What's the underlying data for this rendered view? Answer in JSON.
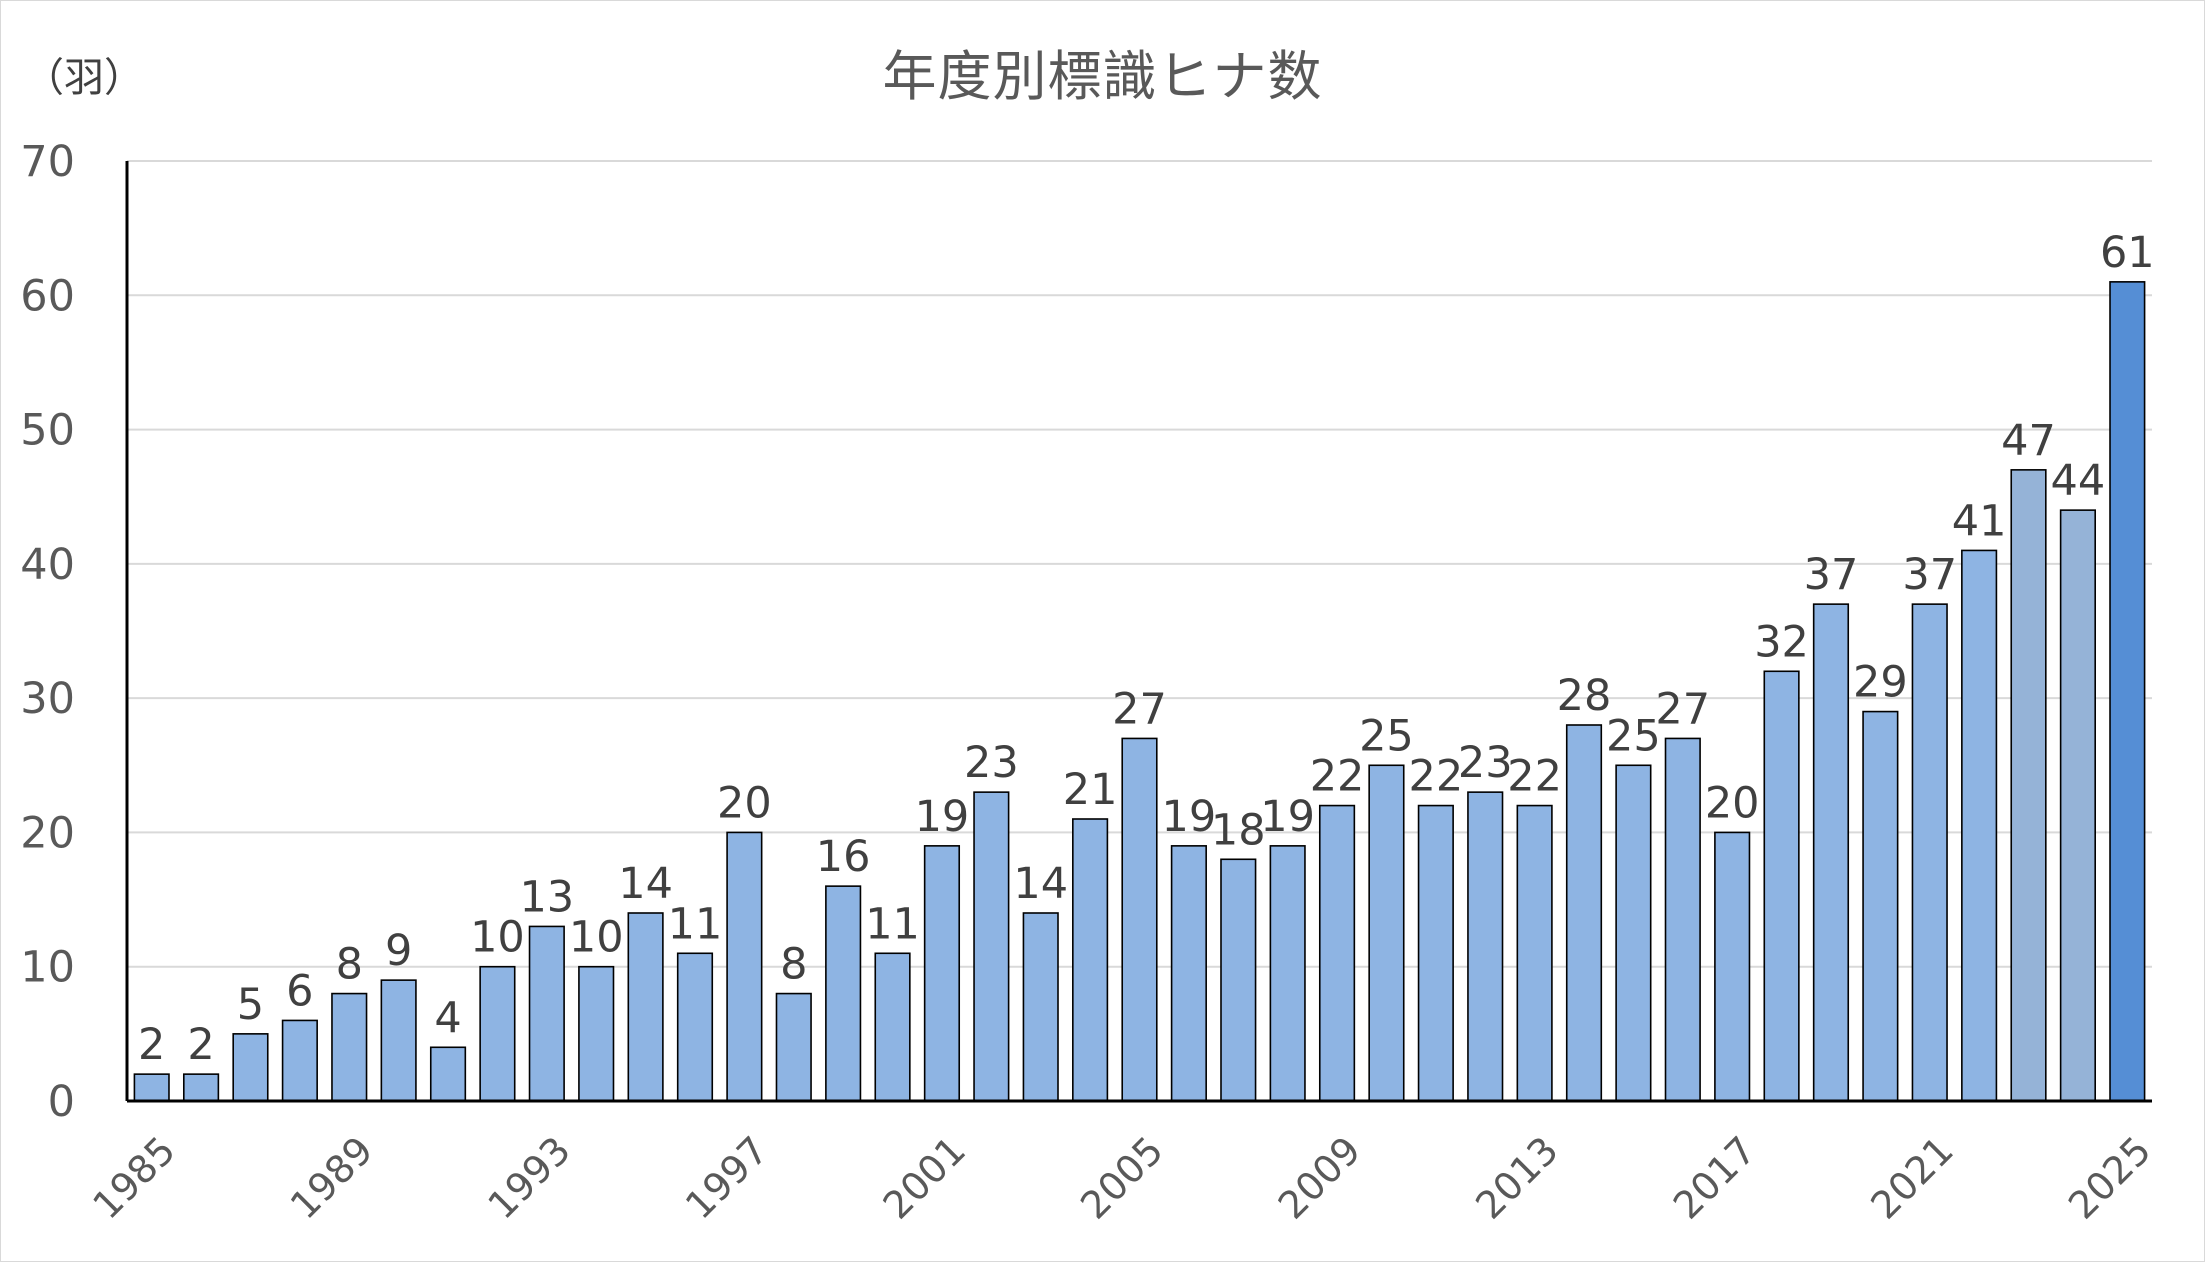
{
  "chart_data": {
    "type": "bar",
    "title": "年度別標識ヒナ数",
    "unit_label": "（羽）",
    "xlabel": "",
    "ylabel": "",
    "ylim": [
      0,
      70
    ],
    "yticks": [
      0,
      10,
      20,
      30,
      40,
      50,
      60,
      70
    ],
    "grid": true,
    "legend": "none",
    "x_tick_labels": [
      "1985",
      "1989",
      "1993",
      "1997",
      "2001",
      "2005",
      "2009",
      "2013",
      "2017",
      "2021",
      "2025"
    ],
    "categories": [
      "1985",
      "1986",
      "1987",
      "1988",
      "1989",
      "1990",
      "1991",
      "1992",
      "1993",
      "1994",
      "1995",
      "1996",
      "1997",
      "1998",
      "1999",
      "2000",
      "2001",
      "2002",
      "2003",
      "2004",
      "2005",
      "2006",
      "2007",
      "2008",
      "2009",
      "2010",
      "2011",
      "2012",
      "2013",
      "2014",
      "2015",
      "2016",
      "2017",
      "2018",
      "2019",
      "2020",
      "2021",
      "2022",
      "2023",
      "2024",
      "2025"
    ],
    "values": [
      2,
      2,
      5,
      6,
      8,
      9,
      4,
      10,
      13,
      10,
      14,
      11,
      20,
      8,
      16,
      11,
      19,
      23,
      14,
      21,
      27,
      19,
      18,
      19,
      22,
      25,
      22,
      23,
      22,
      28,
      25,
      27,
      20,
      32,
      37,
      29,
      37,
      41,
      47,
      44,
      61
    ],
    "colors": {
      "bar": "#8eb4e3",
      "bar_2023": "#95b3d7",
      "bar_2024": "#95b3d7",
      "bar_2025": "#558ed5",
      "bar_outline": "#000000",
      "grid": "#d9d9d9",
      "axis": "#000000"
    }
  }
}
